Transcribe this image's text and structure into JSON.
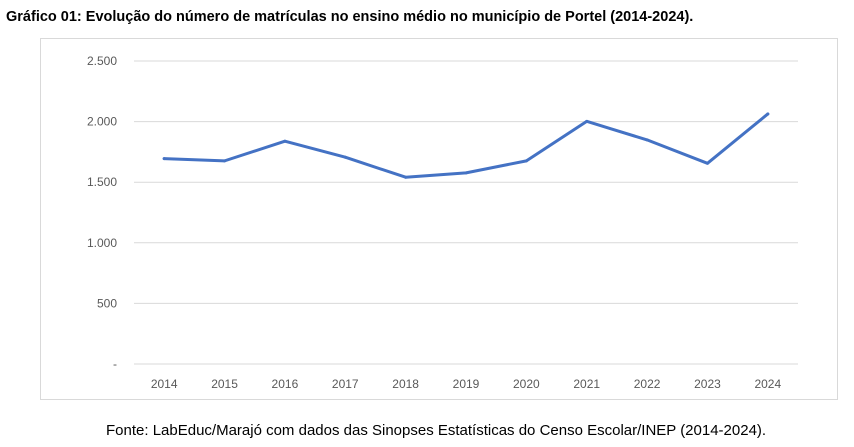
{
  "title": "Gráfico 01: Evolução do número de matrículas no ensino médio no município de Portel (2014-2024).",
  "source": "Fonte: LabEduc/Marajó com dados das Sinopses Estatísticas do Censo Escolar/INEP (2014-2024).",
  "chart_data": {
    "type": "line",
    "title": "",
    "xlabel": "",
    "ylabel": "",
    "categories": [
      "2014",
      "2015",
      "2016",
      "2017",
      "2018",
      "2019",
      "2020",
      "2021",
      "2022",
      "2023",
      "2024"
    ],
    "values": [
      1695,
      1676,
      1838,
      1706,
      1541,
      1577,
      1676,
      2002,
      1849,
      1656,
      2063
    ],
    "ylim": [
      0,
      2500
    ],
    "yticks": [
      0,
      500,
      1000,
      1500,
      2000,
      2500
    ],
    "ytick_labels": [
      "-",
      "500",
      "1.000",
      "1.500",
      "2.000",
      "2.500"
    ],
    "grid": true,
    "legend": "none",
    "line_color": "#4472C4",
    "grid_color": "#d9d9d9"
  }
}
